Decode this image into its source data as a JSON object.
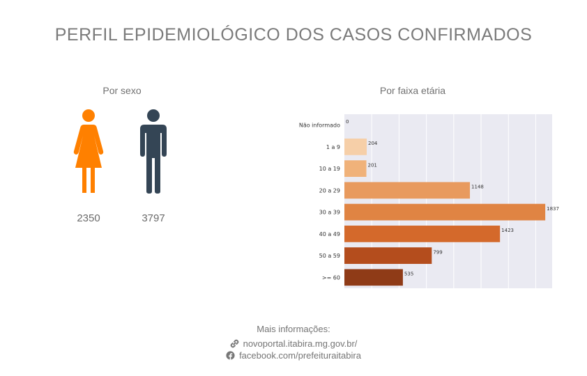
{
  "header": {
    "title": "PERFIL EPIDEMIOLÓGICO DOS CASOS CONFIRMADOS"
  },
  "sex": {
    "title": "Por sexo",
    "female": {
      "count": "2350",
      "color": "#ff8000",
      "icon": "female-figure-icon"
    },
    "male": {
      "count": "3797",
      "color": "#344555",
      "icon": "male-figure-icon"
    }
  },
  "age": {
    "title": "Por faixa etária"
  },
  "chart_data": {
    "type": "bar",
    "orientation": "horizontal",
    "title": "Por faixa etária",
    "categories": [
      "Não informado",
      "1 a 9",
      "10 a 19",
      "20 a 29",
      "30 a 39",
      "40 a 49",
      "50 a 59",
      ">= 60"
    ],
    "values": [
      0,
      204,
      201,
      1148,
      1837,
      1423,
      799,
      535
    ],
    "data_labels": [
      "0",
      "204",
      "201",
      "1148",
      "1837",
      "1423",
      "799",
      "535"
    ],
    "colors": [
      "#f9dcc0",
      "#f6cfa8",
      "#f0b27a",
      "#e89a5e",
      "#e08443",
      "#d4692b",
      "#b44d1d",
      "#8f3b17"
    ],
    "xlim": [
      0,
      1900
    ],
    "grid": true,
    "background": "#eaeaf2"
  },
  "footer": {
    "more_info": "Mais informações:",
    "website": "novoportal.itabira.mg.gov.br/",
    "facebook": "facebook.com/prefeituraitabira",
    "website_icon": "link-icon",
    "facebook_icon": "facebook-icon"
  }
}
